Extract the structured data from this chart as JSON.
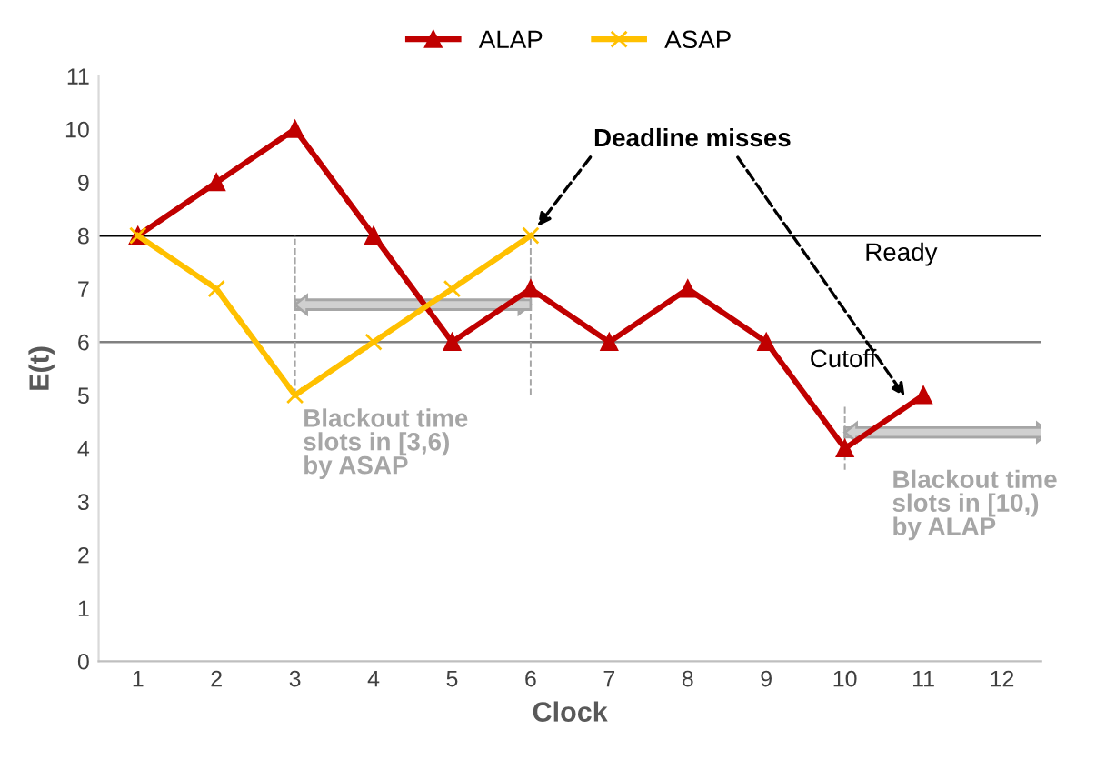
{
  "chart_data": {
    "type": "line",
    "xlabel": "Clock",
    "ylabel": "E(t)",
    "categories": [
      "1",
      "2",
      "3",
      "4",
      "5",
      "6",
      "7",
      "8",
      "9",
      "10",
      "11",
      "12"
    ],
    "series": [
      {
        "name": "ALAP",
        "color": "#c00000",
        "marker": "triangle",
        "values": [
          8,
          9,
          10,
          8,
          6,
          7,
          6,
          7,
          6,
          4,
          5,
          null
        ]
      },
      {
        "name": "ASAP",
        "color": "#ffc000",
        "marker": "cross",
        "values": [
          8,
          7,
          5,
          6,
          7,
          8,
          null,
          null,
          null,
          null,
          null,
          null
        ]
      }
    ],
    "ylim": [
      0,
      11
    ],
    "yticks": [
      0,
      1,
      2,
      3,
      4,
      5,
      6,
      7,
      8,
      9,
      10,
      11
    ],
    "grid": false,
    "legend": "top",
    "ref_lines": [
      {
        "axis": "y",
        "value": 8,
        "label": "Ready",
        "color": "#000000"
      },
      {
        "axis": "y",
        "value": 6,
        "label": "Cutoff",
        "color": "#808080"
      }
    ],
    "annotations": [
      {
        "text": "Deadline misses",
        "x": "6",
        "y": 8
      },
      {
        "text": "Blackout time\nslots in [3,6)\nby ASAP",
        "x": "3",
        "y": 5
      },
      {
        "text": "Blackout time\nslots in [10,)\nby ALAP",
        "x": "10",
        "y": 4
      }
    ]
  }
}
